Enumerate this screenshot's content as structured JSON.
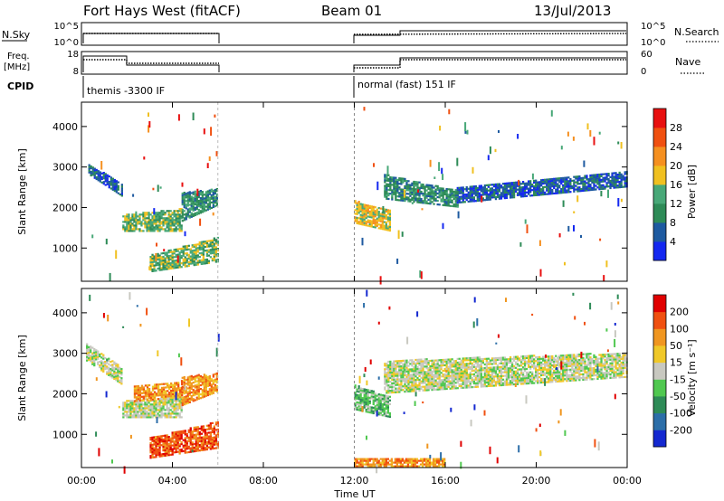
{
  "header": {
    "station": "Fort Hays West (fitACF)",
    "beam": "Beam 01",
    "date": "13/Jul/2013"
  },
  "top_panels": {
    "nsky": {
      "label": "N.Sky",
      "right_label": "N.Search",
      "ticks": [
        "10^5",
        "10^0"
      ],
      "right_ticks": [
        "10^5",
        "10^0"
      ]
    },
    "freq": {
      "label_line1": "Freq.",
      "label_line2": "[MHz]",
      "right_label": "Nave",
      "ticks": [
        "18",
        "8"
      ],
      "right_ticks": [
        "60",
        "0"
      ]
    },
    "cpid": {
      "label": "CPID",
      "segments": [
        {
          "text": "themis -3300 IF",
          "start_hour": 0
        },
        {
          "text": "normal (fast) 151 IF",
          "start_hour": 12
        }
      ]
    }
  },
  "x_axis": {
    "label": "Time UT",
    "ticks": [
      "00:00",
      "04:00",
      "08:00",
      "12:00",
      "16:00",
      "20:00",
      "00:00"
    ]
  },
  "chart_data": [
    {
      "type": "heatmap",
      "title": "",
      "xlabel": "Time UT",
      "ylabel": "Slant Range [km]",
      "xlim": [
        0,
        24
      ],
      "ylim": [
        180,
        4600
      ],
      "yticks": [
        "1000",
        "2000",
        "3000",
        "4000"
      ],
      "colorbar": {
        "label": "Power [dB]",
        "ticks": [
          "4",
          "8",
          "12",
          "16",
          "20",
          "24",
          "28"
        ],
        "colors": [
          "#1428f0",
          "#1e5aa0",
          "#2e8b57",
          "#48a878",
          "#f0c020",
          "#f59020",
          "#f05010",
          "#e81010"
        ]
      },
      "bands": [
        {
          "t": [
            0.3,
            1.8
          ],
          "r_top": [
            3050,
            2550
          ],
          "r_bot": [
            2800,
            2250
          ],
          "level": 1
        },
        {
          "t": [
            1.8,
            4.4
          ],
          "r_top": [
            1800,
            1950
          ],
          "r_bot": [
            1400,
            1400
          ],
          "level": 3
        },
        {
          "t": [
            4.4,
            6.0
          ],
          "r_top": [
            2350,
            2450
          ],
          "r_bot": [
            1650,
            2050
          ],
          "level": 2
        },
        {
          "t": [
            3.0,
            6.0
          ],
          "r_top": [
            800,
            1250
          ],
          "r_bot": [
            400,
            650
          ],
          "level": 3
        },
        {
          "t": [
            12.0,
            13.6
          ],
          "r_top": [
            2150,
            1900
          ],
          "r_bot": [
            1600,
            1400
          ],
          "level": 4
        },
        {
          "t": [
            13.3,
            16.5
          ],
          "r_top": [
            2800,
            2400
          ],
          "r_bot": [
            2200,
            2000
          ],
          "level": 2
        },
        {
          "t": [
            16.5,
            24.0
          ],
          "r_top": [
            2500,
            2900
          ],
          "r_bot": [
            2100,
            2500
          ],
          "level": 1
        }
      ]
    },
    {
      "type": "heatmap",
      "title": "",
      "xlabel": "Time UT",
      "ylabel": "Slant Range [km]",
      "xlim": [
        0,
        24
      ],
      "ylim": [
        180,
        4600
      ],
      "yticks": [
        "1000",
        "2000",
        "3000",
        "4000"
      ],
      "colorbar": {
        "label": "Velocity [m s⁻¹]",
        "ticks": [
          "200",
          "100",
          "50",
          "15",
          "-15",
          "-50",
          "-100",
          "-200"
        ],
        "colors": [
          "#1428d0",
          "#2c6ea8",
          "#2e8b57",
          "#50c850",
          "#c8c8c0",
          "#f0c828",
          "#f09620",
          "#f05010",
          "#e00000"
        ]
      },
      "bands": [
        {
          "t": [
            0.2,
            1.8
          ],
          "r_top": [
            3250,
            2600
          ],
          "r_bot": [
            2800,
            2200
          ],
          "level": 4
        },
        {
          "t": [
            1.8,
            4.4
          ],
          "r_top": [
            1800,
            1950
          ],
          "r_bot": [
            1400,
            1400
          ],
          "level": 4
        },
        {
          "t": [
            2.3,
            4.4
          ],
          "r_top": [
            2200,
            2300
          ],
          "r_bot": [
            1800,
            1900
          ],
          "level": 6
        },
        {
          "t": [
            4.4,
            6.0
          ],
          "r_top": [
            2400,
            2500
          ],
          "r_bot": [
            1700,
            2050
          ],
          "level": 6
        },
        {
          "t": [
            3.0,
            6.0
          ],
          "r_top": [
            900,
            1300
          ],
          "r_bot": [
            400,
            650
          ],
          "level": 7
        },
        {
          "t": [
            12.0,
            13.6
          ],
          "r_top": [
            2200,
            1900
          ],
          "r_bot": [
            1600,
            1400
          ],
          "level": 3
        },
        {
          "t": [
            13.3,
            24.0
          ],
          "r_top": [
            2800,
            3000
          ],
          "r_bot": [
            2000,
            2400
          ],
          "level": 4
        },
        {
          "t": [
            12.0,
            16.0
          ],
          "r_top": [
            380,
            380
          ],
          "r_bot": [
            190,
            190
          ],
          "level": 6
        }
      ]
    }
  ]
}
